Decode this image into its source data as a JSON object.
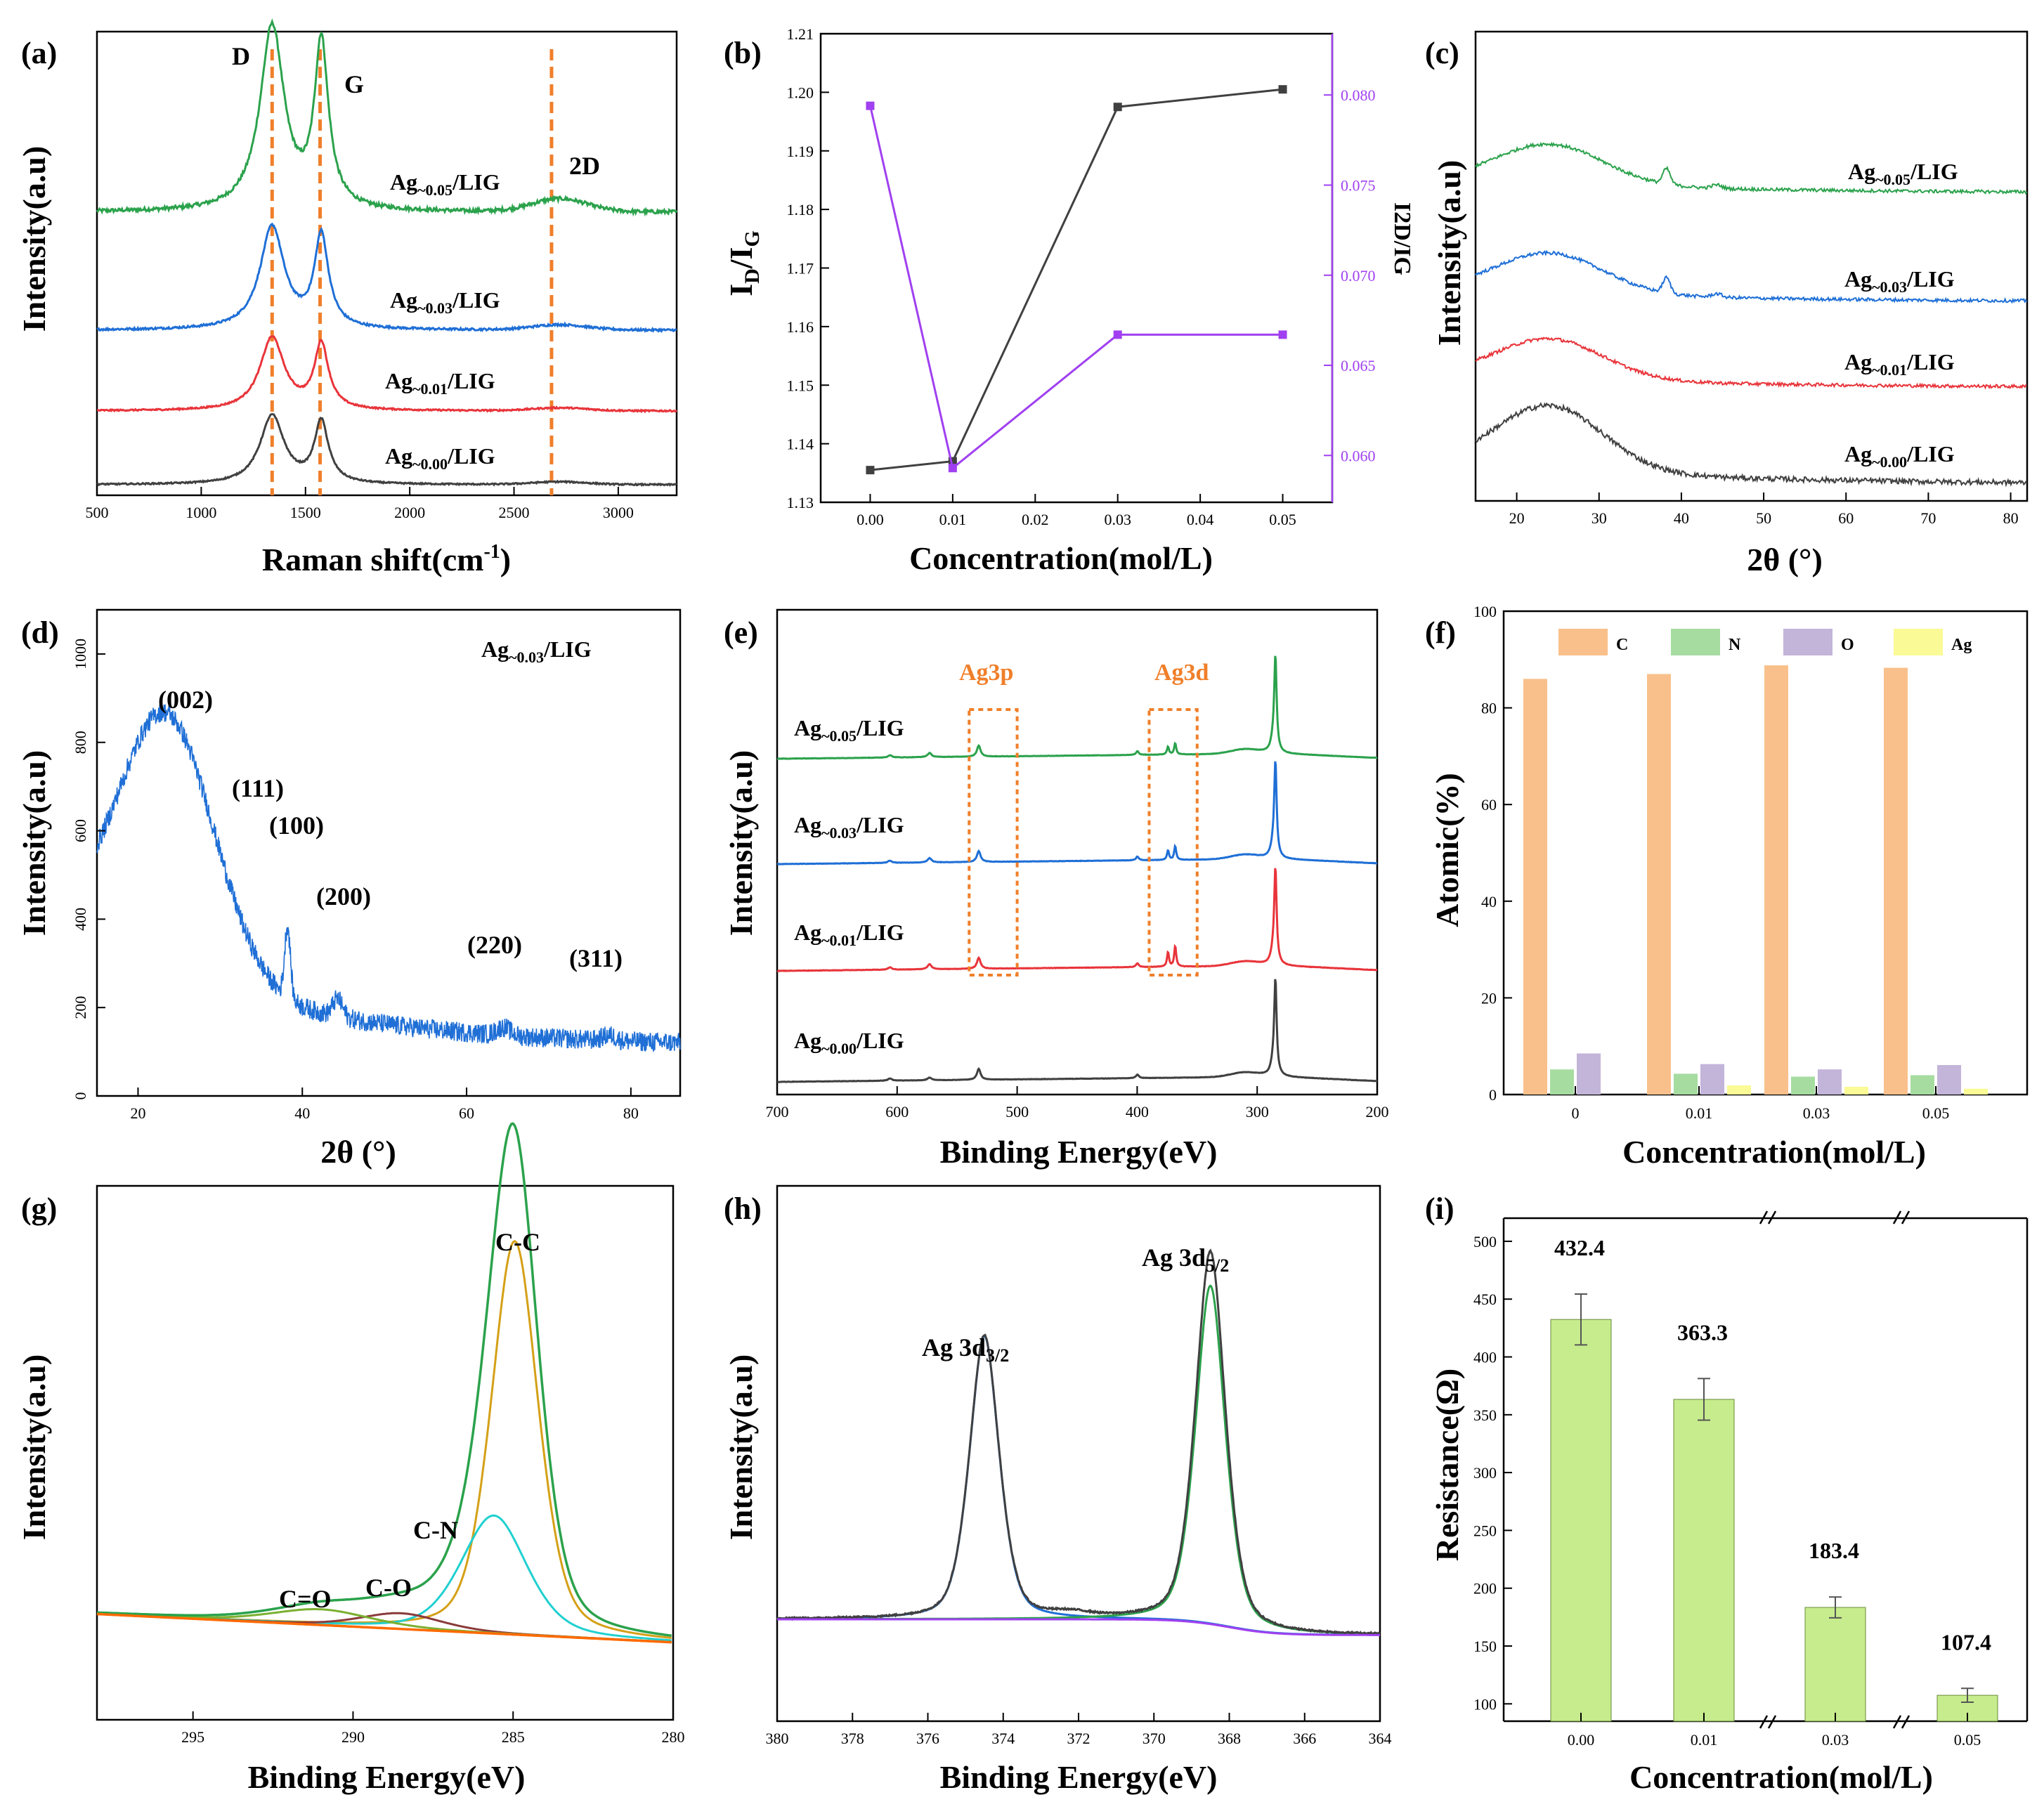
{
  "chart_data": [
    {
      "panel": "(a)",
      "type": "line",
      "xlabel": "Raman shift(cm",
      "xlabel_sup": "-1",
      "xlabel_end": ")",
      "ylabel": "Intensity(a.u)",
      "xlim": [
        500,
        3280
      ],
      "xticks": [
        "500",
        "1000",
        "1500",
        "2000",
        "2500",
        "3000"
      ],
      "annotations": [
        "D",
        "G",
        "2D"
      ],
      "guides_x": [
        1340,
        1570,
        2680
      ],
      "series": [
        {
          "name": "Ag-0.05/LIG",
          "label_main": "Ag",
          "label_sub": "~0.05",
          "label_end": "/LIG",
          "color": "#2ba24c",
          "offset": 3,
          "scale": 2.15,
          "ratio_2d": 0.07
        },
        {
          "name": "Ag-0.03/LIG",
          "label_main": "Ag",
          "label_sub": "~0.03",
          "label_end": "/LIG",
          "color": "#1f6fd6",
          "offset": 2,
          "scale": 1.2,
          "ratio_2d": 0.05
        },
        {
          "name": "Ag-0.01/LIG",
          "label_main": "Ag",
          "label_sub": "~0.01",
          "label_end": "/LIG",
          "color": "#e8343a",
          "offset": 1,
          "scale": 0.85,
          "ratio_2d": 0.04
        },
        {
          "name": "Ag-0.00/LIG",
          "label_main": "Ag",
          "label_sub": "~0.00",
          "label_end": "/LIG",
          "color": "#404040",
          "offset": 0,
          "scale": 0.8,
          "ratio_2d": 0.04
        }
      ]
    },
    {
      "panel": "(b)",
      "type": "line",
      "xlabel": "Concentration(mol/L)",
      "ylabel_main": "I",
      "ylabel_sub1": "D",
      "ylabel_mid": "/I",
      "ylabel_sub2": "G",
      "ylabel_right": "I2D/IG",
      "categories": [
        "0.00",
        "0.01",
        "0.02",
        "0.03",
        "0.04",
        "0.05"
      ],
      "x": [
        0.0,
        0.01,
        0.03,
        0.05
      ],
      "ylim": [
        1.13,
        1.21
      ],
      "yticks": [
        "1.13",
        "1.14",
        "1.15",
        "1.16",
        "1.17",
        "1.18",
        "1.19",
        "1.20",
        "1.21"
      ],
      "y2lim": [
        0.0574,
        0.0834
      ],
      "y2ticks": [
        "0.060",
        "0.065",
        "0.070",
        "0.075",
        "0.080"
      ],
      "series": [
        {
          "name": "ID/IG",
          "axis": "left",
          "color": "#404040",
          "values": [
            1.1355,
            1.137,
            1.1975,
            1.2005
          ]
        },
        {
          "name": "I2D/IG",
          "axis": "right",
          "color": "#a040f0",
          "values": [
            0.0794,
            0.0593,
            0.0667,
            0.0667
          ]
        }
      ]
    },
    {
      "panel": "(c)",
      "type": "line",
      "xlabel": "2θ (°)",
      "ylabel": "Intensity(a.u)",
      "xlim": [
        15,
        82
      ],
      "xticks": [
        "20",
        "30",
        "40",
        "50",
        "60",
        "70",
        "80"
      ],
      "series": [
        {
          "name": "Ag-0.05/LIG",
          "label_main": "Ag",
          "label_sub": "~0.05",
          "label_end": "/LIG",
          "color": "#2ba24c",
          "offset": 3,
          "has_ag_peak": true
        },
        {
          "name": "Ag-0.03/LIG",
          "label_main": "Ag",
          "label_sub": "~0.03",
          "label_end": "/LIG",
          "color": "#1f6fd6",
          "offset": 2,
          "has_ag_peak": true
        },
        {
          "name": "Ag-0.01/LIG",
          "label_main": "Ag",
          "label_sub": "~0.01",
          "label_end": "/LIG",
          "color": "#e8343a",
          "offset": 1,
          "has_ag_peak": false
        },
        {
          "name": "Ag-0.00/LIG",
          "label_main": "Ag",
          "label_sub": "~0.00",
          "label_end": "/LIG",
          "color": "#404040",
          "offset": 0,
          "has_ag_peak": false
        }
      ]
    },
    {
      "panel": "(d)",
      "type": "line",
      "xlabel": "2θ (°)",
      "ylabel": "Intensity(a.u)",
      "xlim": [
        15,
        86
      ],
      "ylim": [
        0,
        1100
      ],
      "xticks": [
        "20",
        "40",
        "60",
        "80"
      ],
      "yticks": [
        "0",
        "200",
        "400",
        "600",
        "800",
        "1000"
      ],
      "legend_main": "Ag",
      "legend_sub": "~0.03",
      "legend_end": "/LIG",
      "color": "#1f6fd6",
      "peaks": [
        "(002)",
        "(111)",
        "(100)",
        "(200)",
        "(220)",
        "(311)"
      ]
    },
    {
      "panel": "(e)",
      "type": "line",
      "xlabel": "Binding Energy(eV)",
      "ylabel": "Intensity(a.u)",
      "xlim": [
        700,
        200
      ],
      "xticks": [
        "700",
        "600",
        "500",
        "400",
        "300",
        "200"
      ],
      "boxes": [
        "Ag3p",
        "Ag3d"
      ],
      "series": [
        {
          "name": "Ag-0.05/LIG",
          "label_main": "Ag",
          "label_sub": "~0.05",
          "label_end": "/LIG",
          "color": "#2ba24c",
          "offset": 3,
          "ag": 0.25
        },
        {
          "name": "Ag-0.03/LIG",
          "label_main": "Ag",
          "label_sub": "~0.03",
          "label_end": "/LIG",
          "color": "#1f6fd6",
          "offset": 2,
          "ag": 0.3
        },
        {
          "name": "Ag-0.01/LIG",
          "label_main": "Ag",
          "label_sub": "~0.01",
          "label_end": "/LIG",
          "color": "#e8343a",
          "offset": 1,
          "ag": 0.45
        },
        {
          "name": "Ag-0.00/LIG",
          "label_main": "Ag",
          "label_sub": "~0.00",
          "label_end": "/LIG",
          "color": "#404040",
          "offset": 0,
          "ag": 0
        }
      ]
    },
    {
      "panel": "(f)",
      "type": "bar",
      "xlabel": "Concentration(mol/L)",
      "ylabel": "Atomic(%)",
      "categories": [
        "0",
        "0.01",
        "0.03",
        "0.05"
      ],
      "ylim": [
        0,
        100
      ],
      "yticks": [
        "0",
        "20",
        "40",
        "60",
        "80",
        "100"
      ],
      "series": [
        {
          "name": "C",
          "color": "#f9c08b",
          "values": [
            86.0,
            87.0,
            88.8,
            88.3
          ]
        },
        {
          "name": "N",
          "color": "#a6dca0",
          "values": [
            5.2,
            4.3,
            3.7,
            4.0
          ]
        },
        {
          "name": "O",
          "color": "#c3b4da",
          "values": [
            8.5,
            6.3,
            5.2,
            6.1
          ]
        },
        {
          "name": "Ag",
          "color": "#fafa96",
          "values": [
            0.0,
            1.9,
            1.6,
            1.2
          ]
        }
      ]
    },
    {
      "panel": "(g)",
      "type": "line",
      "xlabel": "Binding Energy(eV)",
      "ylabel": "Intensity(a.u)",
      "xlim": [
        298,
        280
      ],
      "xticks": [
        "295",
        "290",
        "285",
        "280"
      ],
      "components": [
        {
          "name": "C-C",
          "center": 284.95,
          "width": 0.75,
          "height": 1.0,
          "color": "#d4a017"
        },
        {
          "name": "C-N",
          "center": 285.6,
          "width": 1.05,
          "height": 0.3,
          "color": "#20d0d0"
        },
        {
          "name": "C-O",
          "center": 288.5,
          "width": 1.3,
          "height": 0.04,
          "color": "#8b3a3a"
        },
        {
          "name": "C=O",
          "center": 291.0,
          "width": 1.6,
          "height": 0.04,
          "color": "#7ab030"
        }
      ],
      "envelope_color": "#2ba24c",
      "baseline_color": "#ff6a00"
    },
    {
      "panel": "(h)",
      "type": "line",
      "xlabel": "Binding Energy(eV)",
      "ylabel": "Intensity(a.u)",
      "xlim": [
        380,
        364
      ],
      "xticks": [
        "380",
        "378",
        "376",
        "374",
        "372",
        "370",
        "368",
        "366",
        "364"
      ],
      "peaks": [
        {
          "main": "Ag 3d",
          "sub": "3/2",
          "center": 374.5,
          "height": 0.72,
          "color": "#1f6fd6"
        },
        {
          "main": "Ag 3d",
          "sub": "5/2",
          "center": 368.5,
          "height": 0.86,
          "color": "#2ba24c"
        }
      ],
      "raw_color": "#404040",
      "baseline_color": "#a040f0"
    },
    {
      "panel": "(i)",
      "type": "bar",
      "xlabel": "Concentration(mol/L)",
      "ylabel": "Resistance(Ω)",
      "categories": [
        "0.00",
        "0.01",
        "0.03",
        "0.05"
      ],
      "values": [
        432.4,
        363.3,
        183.4,
        107.4
      ],
      "value_labels": [
        "432.4",
        "363.3",
        "183.4",
        "107.4"
      ],
      "errors": [
        22,
        18,
        9,
        6
      ],
      "ylim": [
        85,
        520
      ],
      "yticks": [
        "100",
        "150",
        "200",
        "250",
        "300",
        "350",
        "400",
        "450",
        "500"
      ],
      "color": "#c6ec8d"
    }
  ]
}
